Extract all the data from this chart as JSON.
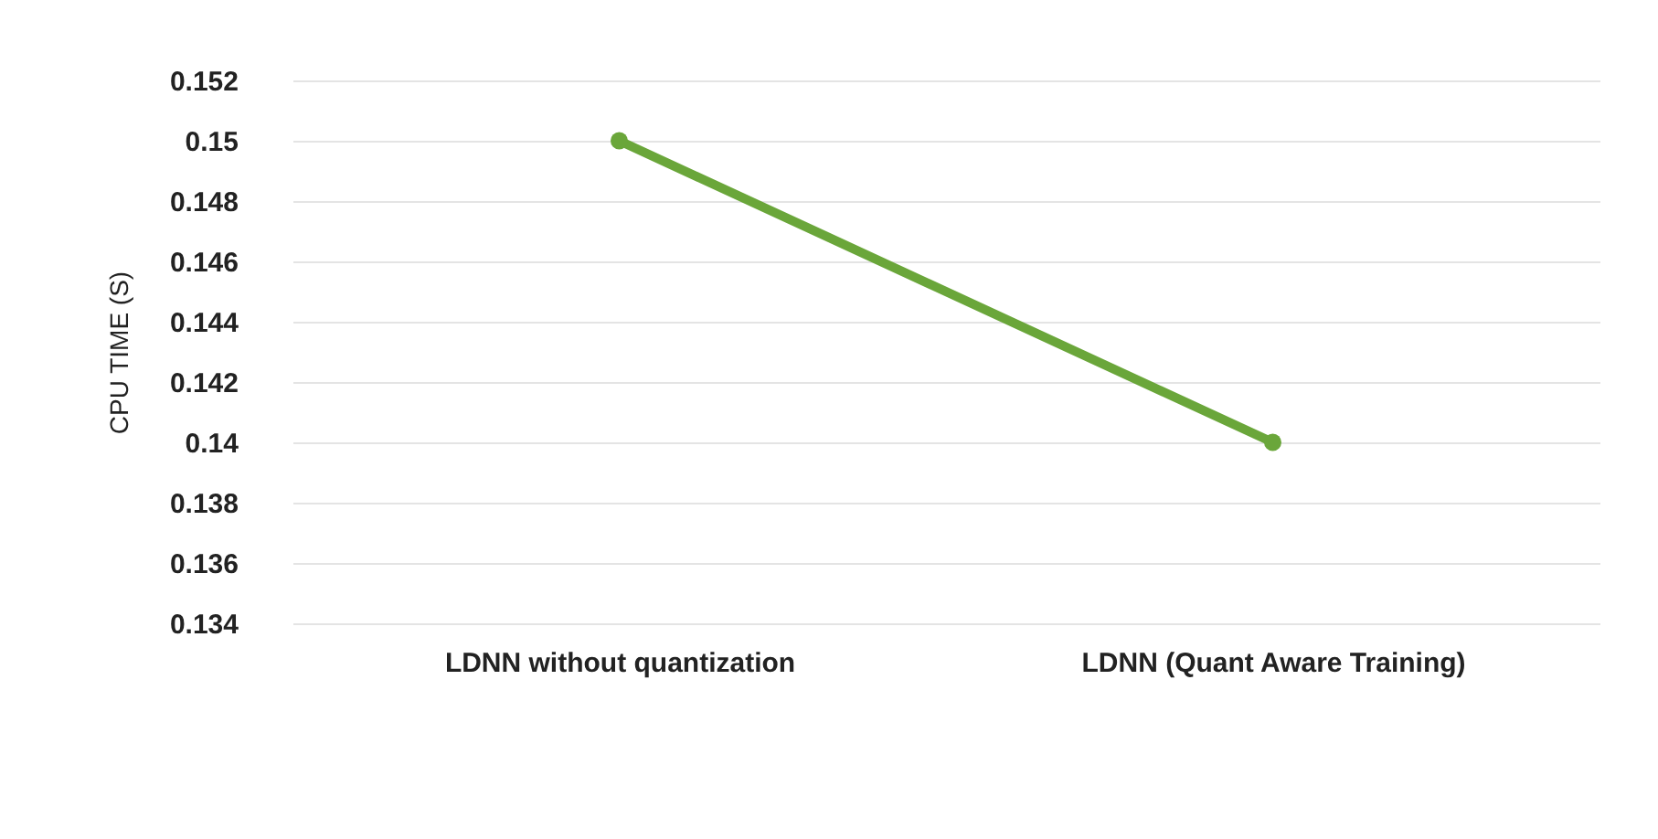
{
  "chart_data": {
    "type": "line",
    "ylabel": "CPU TIME (S)",
    "categories": [
      "LDNN without quantization",
      "LDNN (Quant Aware Training)"
    ],
    "series": [
      {
        "color": "#6aa63a",
        "values": [
          0.15,
          0.14
        ]
      }
    ],
    "ylim": [
      0.134,
      0.152
    ],
    "yticks": [
      0.134,
      0.136,
      0.138,
      {
        "value": 0.14,
        "label": "0.14"
      },
      0.142,
      0.144,
      0.146,
      0.148,
      {
        "value": 0.15,
        "label": "0.15"
      },
      0.152
    ],
    "grid": "y",
    "marker": "circle",
    "line_style": "solid",
    "legend": false
  }
}
